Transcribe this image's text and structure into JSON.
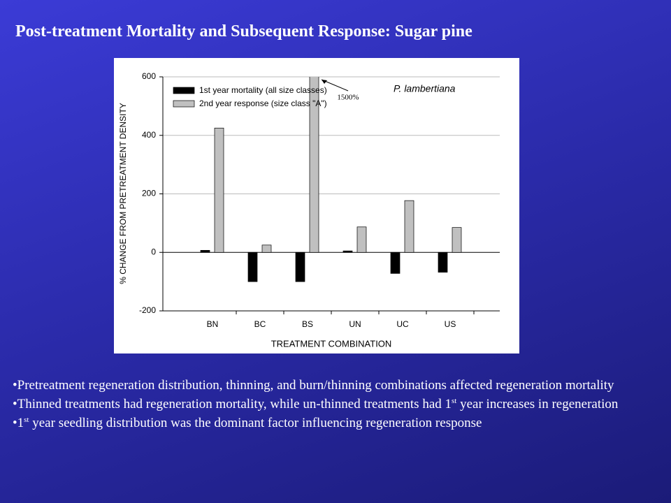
{
  "title": "Post-treatment Mortality and Subsequent Response: Sugar pine",
  "chart_data": {
    "type": "bar",
    "ylabel": "% CHANGE FROM PRETREATMENT DENSITY",
    "xlabel": "TREATMENT COMBINATION",
    "inset_label": "P. lambertiana",
    "categories": [
      "BN",
      "BC",
      "BS",
      "UN",
      "UC",
      "US"
    ],
    "series": [
      {
        "name": "1st year mortality (all size classes)",
        "color": "#000000",
        "values": [
          7,
          -100,
          -100,
          5,
          -72,
          -68
        ]
      },
      {
        "name": "2nd year response (size class \"A\")",
        "color": "#c0c0c0",
        "values": [
          425,
          25,
          1500,
          87,
          177,
          85
        ],
        "value_labels": [
          null,
          null,
          "1500%",
          null,
          null,
          null
        ]
      }
    ],
    "ylim": [
      -200,
      600
    ],
    "yticks": [
      -200,
      0,
      200,
      400,
      600
    ],
    "grid": true,
    "legend": "upper left"
  },
  "bullets": [
    [
      {
        "text": "Pretreatment regeneration distribution, thinning, and burn/thinning combinations affected regeneration mortality"
      }
    ],
    [
      {
        "text": "Thinned treatments had regeneration mortality, while un-thinned treatments had 1"
      },
      {
        "sup": "st"
      },
      {
        "text": " year increases in regeneration"
      }
    ],
    [
      {
        "text": "1"
      },
      {
        "sup": "st"
      },
      {
        "text": " year seedling distribution was the dominant factor influencing regeneration response"
      }
    ]
  ]
}
